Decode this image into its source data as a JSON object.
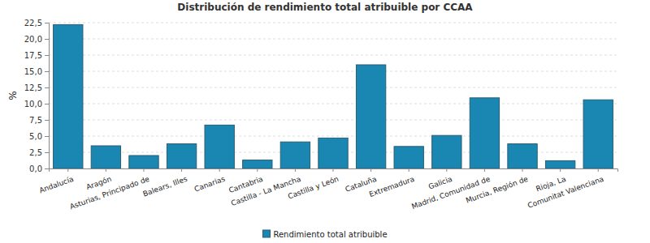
{
  "chart_data": {
    "type": "bar",
    "title": "Distribución de rendimiento total atribuible por CCAA",
    "y_label": "%",
    "categories": [
      "Andalucía",
      "Aragón",
      "Asturias, Principado de",
      "Balears, Illes",
      "Canarias",
      "Cantabria",
      "Castilla - La Mancha",
      "Castilla y León",
      "Cataluña",
      "Extremadura",
      "Galicia",
      "Madrid, Comunidad de",
      "Murcia, Región de",
      "Rioja, La",
      "Comunitat Valenciana"
    ],
    "series": [
      {
        "name": "Rendimiento total atribuible",
        "color": "#1a87b3",
        "values": [
          22.2,
          3.5,
          2.0,
          3.8,
          6.7,
          1.3,
          4.1,
          4.7,
          16.0,
          3.4,
          5.1,
          10.9,
          3.8,
          1.2,
          10.6
        ]
      }
    ],
    "ylim": [
      0,
      22.5
    ],
    "yticks": [
      {
        "value": 0,
        "label": "0,0"
      },
      {
        "value": 2.5,
        "label": "2,5"
      },
      {
        "value": 5,
        "label": "5,0"
      },
      {
        "value": 7.5,
        "label": "7,5"
      },
      {
        "value": 10,
        "label": "10,0"
      },
      {
        "value": 12.5,
        "label": "12,5"
      },
      {
        "value": 15,
        "label": "15,0"
      },
      {
        "value": 17.5,
        "label": "17,5"
      },
      {
        "value": 20,
        "label": "20,0"
      },
      {
        "value": 22.5,
        "label": "22,5"
      }
    ],
    "grid": true,
    "legend": "bottom"
  }
}
